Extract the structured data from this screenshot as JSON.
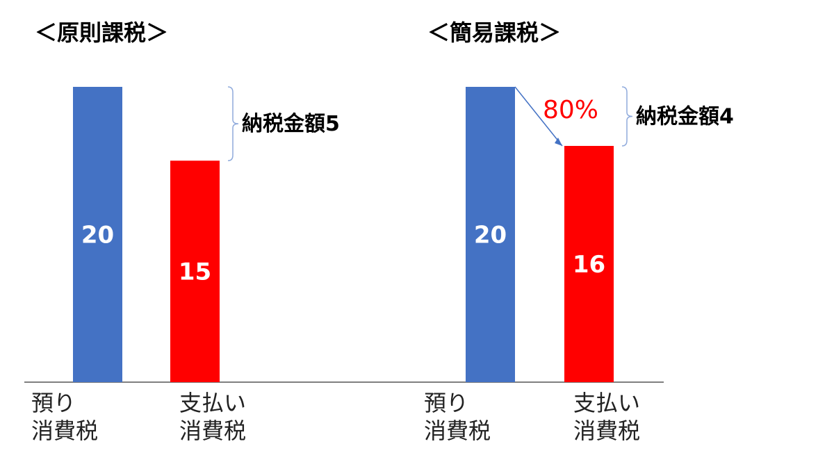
{
  "chart_data": [
    {
      "type": "bar",
      "title": "＜原則課税＞",
      "categories": [
        "預り\n消費税",
        "支払い\n消費税"
      ],
      "values": [
        20,
        15
      ],
      "colors": [
        "#4472c4",
        "#ff0000"
      ],
      "annotation": "納税金額5"
    },
    {
      "type": "bar",
      "title": "＜簡易課税＞",
      "categories": [
        "預り\n消費税",
        "支払い\n消費税"
      ],
      "values": [
        20,
        16
      ],
      "colors": [
        "#4472c4",
        "#ff0000"
      ],
      "annotation": "納税金額4",
      "ratio_annotation": "80%"
    }
  ]
}
